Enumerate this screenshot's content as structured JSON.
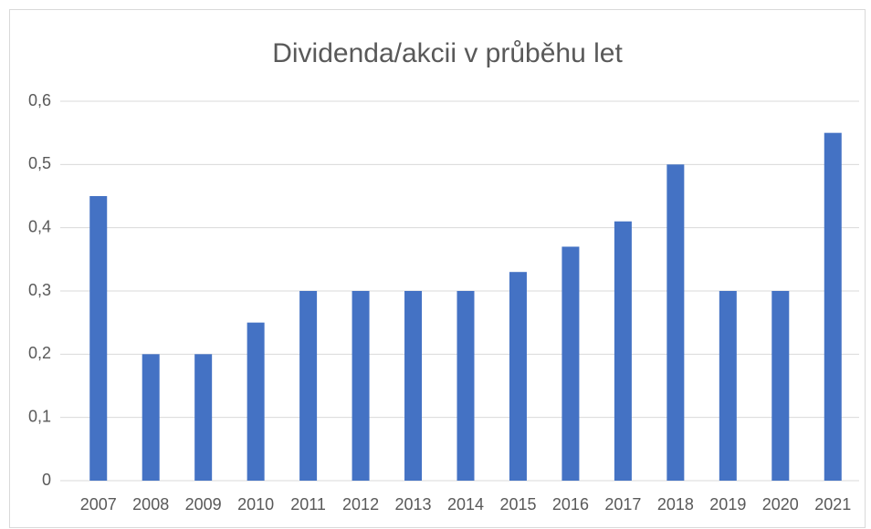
{
  "chart_data": {
    "type": "bar",
    "title": "Dividenda/akcii v průběhu let",
    "categories": [
      "2007",
      "2008",
      "2009",
      "2010",
      "2011",
      "2012",
      "2013",
      "2014",
      "2015",
      "2016",
      "2017",
      "2018",
      "2019",
      "2020",
      "2021"
    ],
    "values": [
      0.45,
      0.2,
      0.2,
      0.25,
      0.3,
      0.3,
      0.3,
      0.3,
      0.33,
      0.37,
      0.41,
      0.5,
      0.3,
      0.3,
      0.55
    ],
    "color": "#4472c4",
    "ylim": [
      0,
      0.6
    ],
    "yticks": [
      0,
      {
        "value": 0.1,
        "label": "0,1"
      },
      {
        "value": 0.2,
        "label": "0,2"
      },
      {
        "value": 0.3,
        "label": "0,3"
      },
      {
        "value": 0.4,
        "label": "0,4"
      },
      {
        "value": 0.5,
        "label": "0,5"
      },
      {
        "value": 0.6,
        "label": "0,6"
      }
    ],
    "grid": true
  }
}
